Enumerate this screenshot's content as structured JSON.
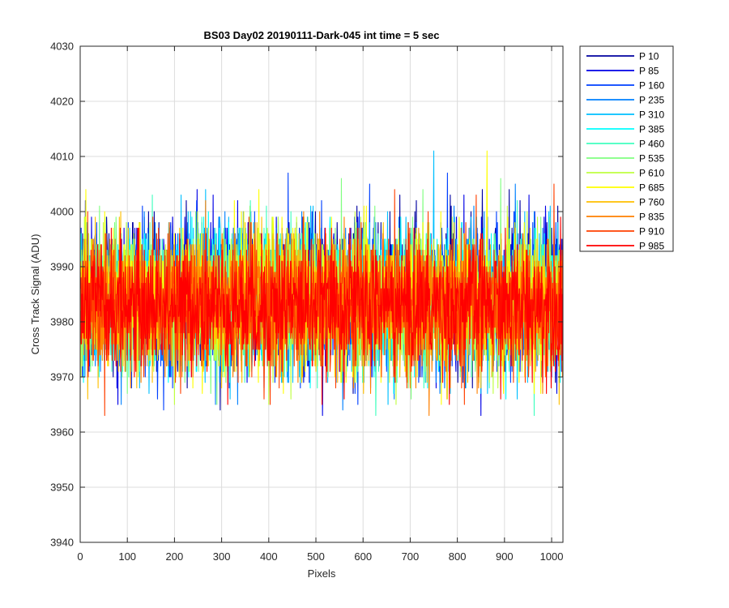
{
  "chart_data": {
    "type": "line",
    "title": "BS03 Day02 20190111-Dark-045 int time = 5 sec",
    "xlabel": "Pixels",
    "ylabel": "Cross Track Signal (ADU)",
    "xlim": [
      0,
      1024
    ],
    "ylim": [
      3940,
      4030
    ],
    "x_ticks": [
      "0",
      "100",
      "200",
      "300",
      "400",
      "500",
      "600",
      "700",
      "800",
      "900",
      "1000"
    ],
    "y_ticks": [
      "3940",
      "3950",
      "3960",
      "3970",
      "3980",
      "3990",
      "4000",
      "4010",
      "4020",
      "4030"
    ],
    "grid": true,
    "legend_position": "outside-top-right",
    "points_per_series": 1024,
    "series": [
      {
        "name": "P 10",
        "color": "#00009f",
        "mean": 3985,
        "sd": 6.5
      },
      {
        "name": "P 85",
        "color": "#0000e6",
        "mean": 3985,
        "sd": 6.5
      },
      {
        "name": "P 160",
        "color": "#0040ff",
        "mean": 3984,
        "sd": 6.5
      },
      {
        "name": "P 235",
        "color": "#0080ff",
        "mean": 3984,
        "sd": 6.3
      },
      {
        "name": "P 310",
        "color": "#00bfff",
        "mean": 3984,
        "sd": 6.3
      },
      {
        "name": "P 385",
        "color": "#00ffff",
        "mean": 3984,
        "sd": 6.2
      },
      {
        "name": "P 460",
        "color": "#40ffbf",
        "mean": 3984,
        "sd": 6.2
      },
      {
        "name": "P 535",
        "color": "#80ff80",
        "mean": 3984,
        "sd": 6.2
      },
      {
        "name": "P 610",
        "color": "#bfff40",
        "mean": 3984,
        "sd": 6.2
      },
      {
        "name": "P 685",
        "color": "#ffff00",
        "mean": 3984,
        "sd": 6.2
      },
      {
        "name": "P 760",
        "color": "#ffbf00",
        "mean": 3983,
        "sd": 6.1
      },
      {
        "name": "P 835",
        "color": "#ff8000",
        "mean": 3983,
        "sd": 6.1
      },
      {
        "name": "P 910",
        "color": "#ff4000",
        "mean": 3983,
        "sd": 6.0
      },
      {
        "name": "P 985",
        "color": "#ff0000",
        "mean": 3983,
        "sd": 5.8
      }
    ]
  }
}
